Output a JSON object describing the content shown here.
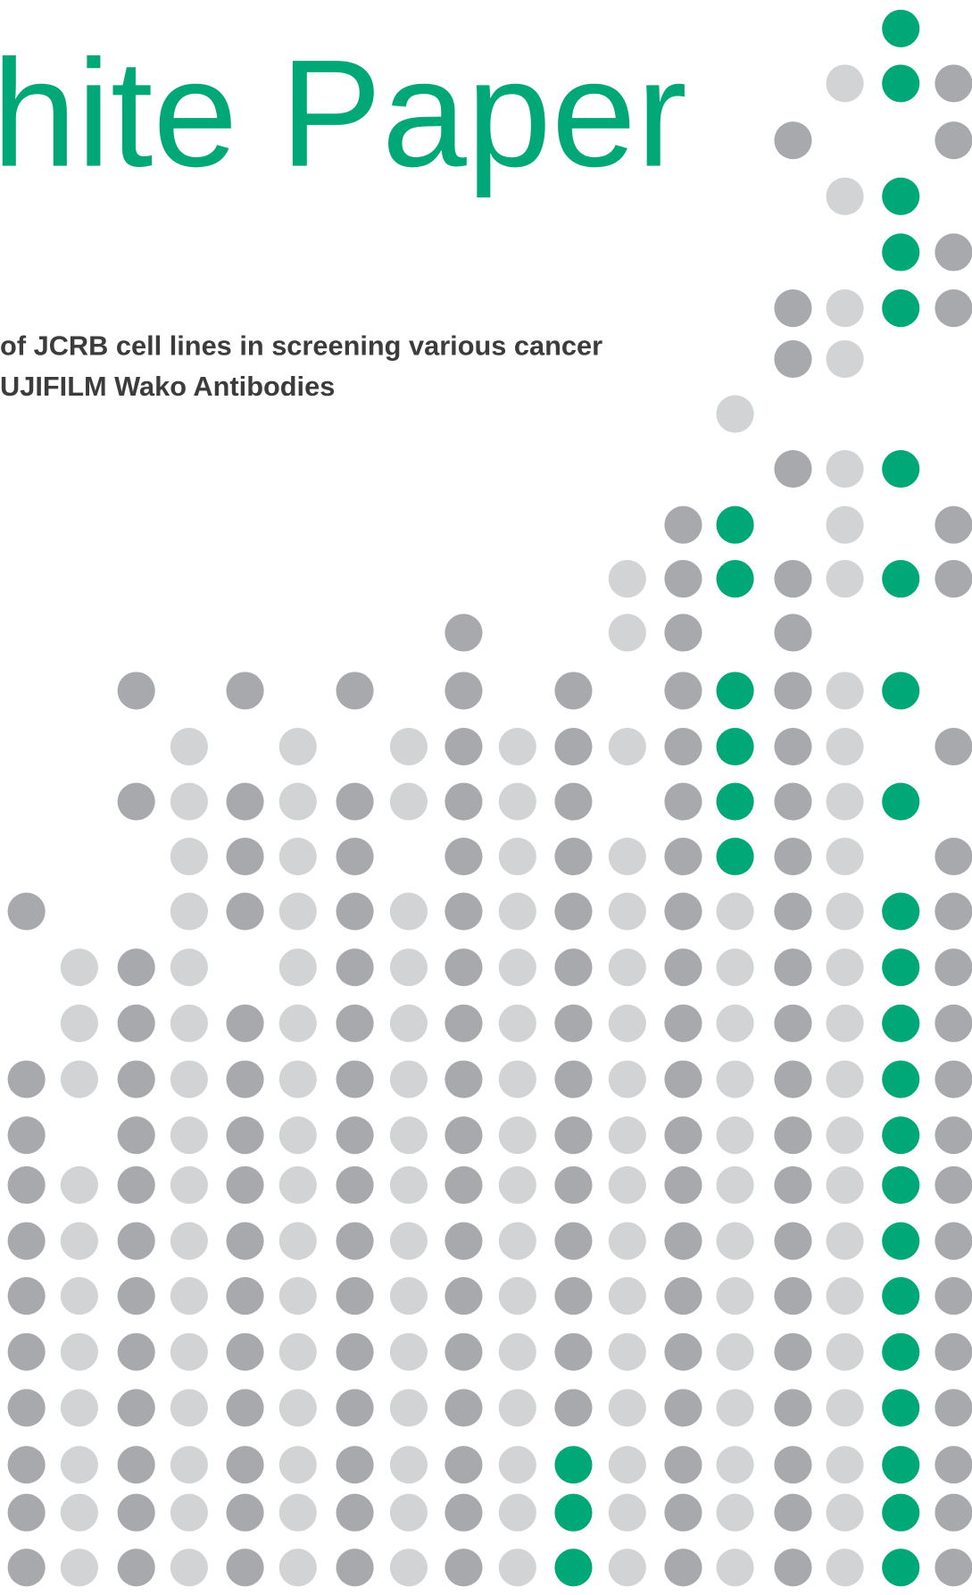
{
  "header": {
    "title": "hite Paper",
    "subtitle_lines": [
      "of JCRB cell lines in screening various cancer",
      "UJIFILM Wako Antibodies"
    ]
  }
}
